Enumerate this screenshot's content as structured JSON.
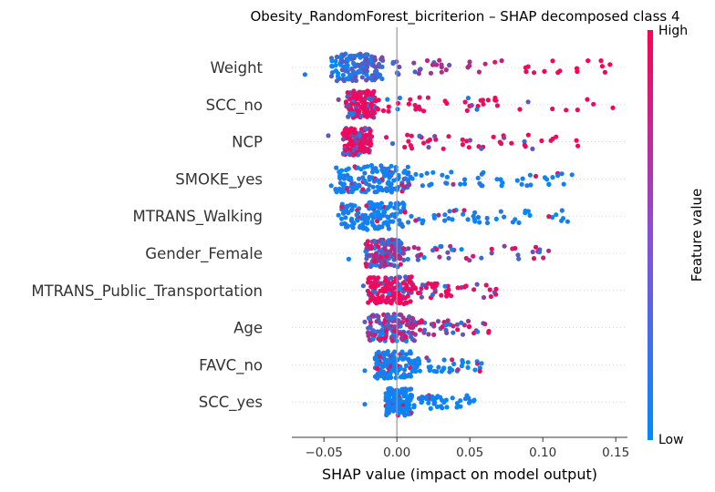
{
  "chart_data": {
    "type": "scatter",
    "subtype": "shap-beeswarm",
    "title": "Obesity_RandomForest_bicriterion – SHAP decomposed class 4",
    "xlabel": "SHAP value (impact on model output)",
    "xlim": [
      -0.072,
      0.158
    ],
    "xticks": [
      -0.05,
      0.0,
      0.05,
      0.1,
      0.15
    ],
    "xtick_labels": [
      "−0.05",
      "0.00",
      "0.05",
      "0.10",
      "0.15"
    ],
    "grid": false,
    "zero_line": true,
    "colorbar": {
      "title": "Feature value",
      "high_label": "High",
      "low_label": "Low",
      "high_color": "#ff0052",
      "mid_color": "#8a4fd6",
      "low_color": "#008bfb"
    },
    "features": [
      {
        "name": "Weight",
        "min": -0.063,
        "max": 0.146,
        "core": [
          -0.045,
          -0.01
        ],
        "spread": 0.058,
        "color_trend": "positive-high"
      },
      {
        "name": "SCC_no",
        "min": -0.04,
        "max": 0.148,
        "core": [
          -0.035,
          -0.015
        ],
        "spread": 0.055,
        "color_trend": "mostly-high"
      },
      {
        "name": "NCP",
        "min": -0.047,
        "max": 0.124,
        "core": [
          -0.037,
          -0.018
        ],
        "spread": 0.04,
        "color_trend": "mostly-high"
      },
      {
        "name": "SMOKE_yes",
        "min": -0.045,
        "max": 0.12,
        "core": [
          -0.042,
          0.008
        ],
        "spread": 0.03,
        "color_trend": "low"
      },
      {
        "name": "MTRANS_Walking",
        "min": -0.04,
        "max": 0.117,
        "core": [
          -0.038,
          0.005
        ],
        "spread": 0.028,
        "color_trend": "low"
      },
      {
        "name": "Gender_Female",
        "min": -0.033,
        "max": 0.104,
        "core": [
          -0.022,
          0.003
        ],
        "spread": 0.022,
        "color_trend": "mixed"
      },
      {
        "name": "MTRANS_Public_Transportation",
        "min": -0.023,
        "max": 0.068,
        "core": [
          -0.02,
          0.01
        ],
        "spread": 0.02,
        "color_trend": "mostly-high"
      },
      {
        "name": "Age",
        "min": -0.022,
        "max": 0.063,
        "core": [
          -0.02,
          0.012
        ],
        "spread": 0.016,
        "color_trend": "mixed"
      },
      {
        "name": "FAVC_no",
        "min": -0.022,
        "max": 0.058,
        "core": [
          -0.015,
          0.01
        ],
        "spread": 0.014,
        "color_trend": "low"
      },
      {
        "name": "SCC_yes",
        "min": -0.022,
        "max": 0.053,
        "core": [
          -0.008,
          0.01
        ],
        "spread": 0.014,
        "color_trend": "low"
      }
    ]
  }
}
